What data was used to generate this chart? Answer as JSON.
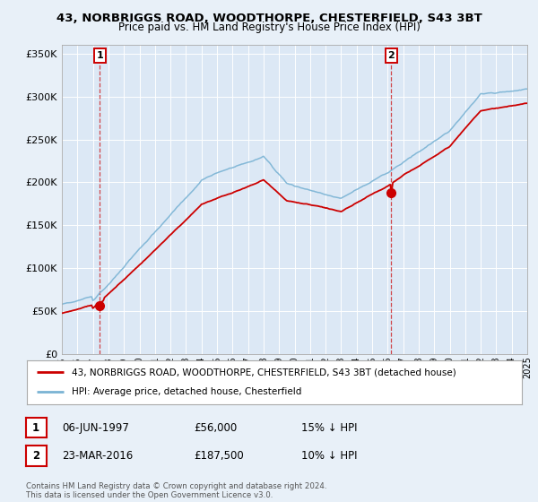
{
  "title_line1": "43, NORBRIGGS ROAD, WOODTHORPE, CHESTERFIELD, S43 3BT",
  "title_line2": "Price paid vs. HM Land Registry's House Price Index (HPI)",
  "background_color": "#e8f0f8",
  "plot_bg_color": "#dce8f5",
  "red_line_label": "43, NORBRIGGS ROAD, WOODTHORPE, CHESTERFIELD, S43 3BT (detached house)",
  "blue_line_label": "HPI: Average price, detached house, Chesterfield",
  "marker1_date": "06-JUN-1997",
  "marker1_price": 56000,
  "marker1_hpi": "15% ↓ HPI",
  "marker2_date": "23-MAR-2016",
  "marker2_price": 187500,
  "marker2_hpi": "10% ↓ HPI",
  "copyright": "Contains HM Land Registry data © Crown copyright and database right 2024.\nThis data is licensed under the Open Government Licence v3.0.",
  "ylim": [
    0,
    360000
  ],
  "yticks": [
    0,
    50000,
    100000,
    150000,
    200000,
    250000,
    300000,
    350000
  ],
  "ytick_labels": [
    "£0",
    "£50K",
    "£100K",
    "£150K",
    "£200K",
    "£250K",
    "£300K",
    "£350K"
  ],
  "year_start": 1995,
  "year_end": 2025,
  "marker1_x": 1997.44,
  "marker2_x": 2016.23,
  "hpi_color": "#7ab3d4",
  "red_color": "#cc0000",
  "grid_color": "#ffffff",
  "label_box_color": "#cc0000"
}
